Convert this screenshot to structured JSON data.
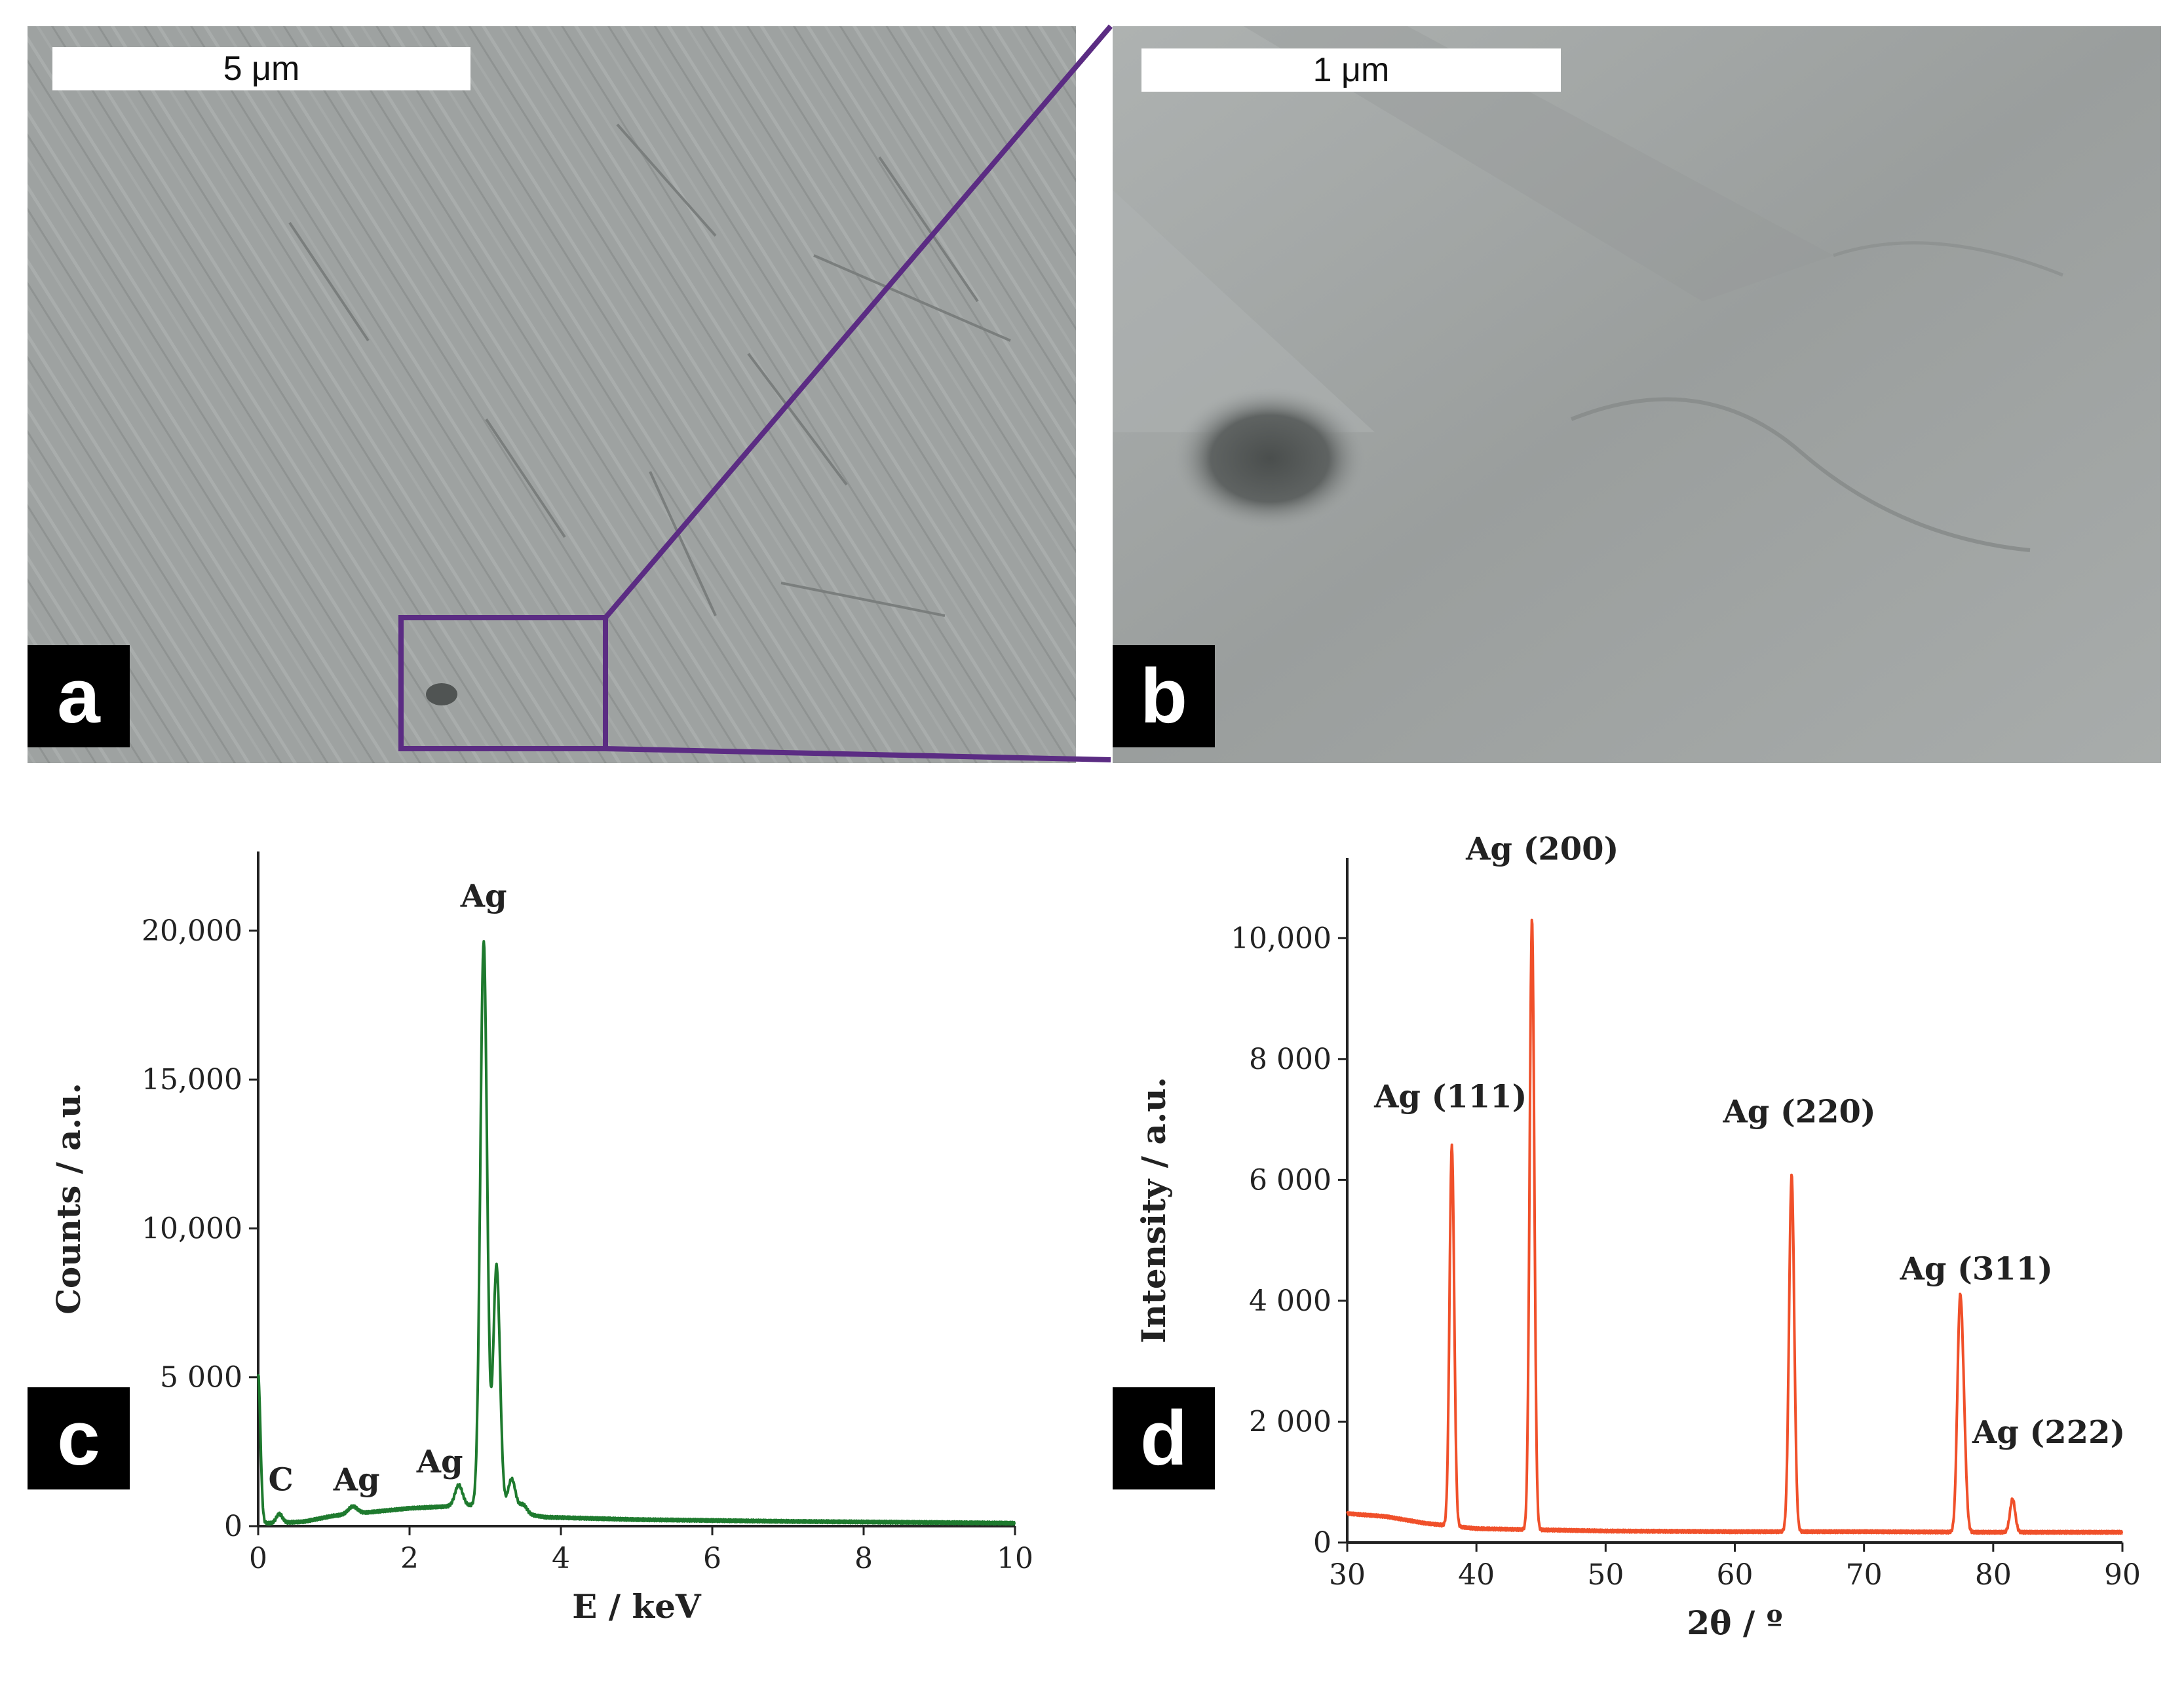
{
  "panels": {
    "a": {
      "letter": "a",
      "scalebar": "5 μm"
    },
    "b": {
      "letter": "b",
      "scalebar": "1 μm"
    },
    "c": {
      "letter": "c"
    },
    "d": {
      "letter": "d"
    }
  },
  "colors": {
    "zoom_box": "#5b2c83",
    "eds_line": "#1e7a2e",
    "xrd_line": "#f0502a",
    "sem_background": "#9ca0a0"
  },
  "chart_data": [
    {
      "type": "line",
      "panel": "c",
      "xlabel": "E / keV",
      "ylabel": "Counts / a.u.",
      "xlim": [
        0,
        10
      ],
      "ylim": [
        0,
        22000
      ],
      "xticks": [
        0,
        2,
        4,
        6,
        8,
        10
      ],
      "xtick_labels": [
        "0",
        "2",
        "4",
        "6",
        "8",
        "10"
      ],
      "yticks": [
        0,
        5000,
        10000,
        15000,
        20000
      ],
      "ytick_labels": [
        "0",
        "5 000",
        "10,000",
        "15,000",
        "20,000"
      ],
      "grid": false,
      "annotations": [
        {
          "text": "C",
          "x": 0.3,
          "y": 1200
        },
        {
          "text": "Ag",
          "x": 1.3,
          "y": 1200
        },
        {
          "text": "Ag",
          "x": 2.4,
          "y": 1800
        },
        {
          "text": "Ag",
          "x": 2.98,
          "y": 20800
        }
      ],
      "peaks": [
        {
          "x": 0.0,
          "y": 5000,
          "w": 0.03
        },
        {
          "x": 0.28,
          "y": 300,
          "w": 0.04
        },
        {
          "x": 1.25,
          "y": 250,
          "w": 0.06
        },
        {
          "x": 2.65,
          "y": 700,
          "w": 0.05
        },
        {
          "x": 2.98,
          "y": 19000,
          "w": 0.045
        },
        {
          "x": 3.15,
          "y": 8200,
          "w": 0.045
        },
        {
          "x": 3.35,
          "y": 1100,
          "w": 0.05
        },
        {
          "x": 3.5,
          "y": 300,
          "w": 0.05
        }
      ],
      "baseline": [
        [
          0.2,
          100
        ],
        [
          0.6,
          150
        ],
        [
          1.0,
          350
        ],
        [
          2.0,
          600
        ],
        [
          2.8,
          700
        ],
        [
          3.8,
          300
        ],
        [
          5.0,
          220
        ],
        [
          7.0,
          160
        ],
        [
          10.0,
          100
        ]
      ]
    },
    {
      "type": "line",
      "panel": "d",
      "xlabel": "2θ / º",
      "ylabel": "Intensity / a.u.",
      "xlim": [
        30,
        90
      ],
      "ylim": [
        0,
        11000
      ],
      "xticks": [
        30,
        40,
        50,
        60,
        70,
        80,
        90
      ],
      "xtick_labels": [
        "30",
        "40",
        "50",
        "60",
        "70",
        "80",
        "90"
      ],
      "yticks": [
        0,
        2000,
        4000,
        6000,
        8000,
        10000
      ],
      "ytick_labels": [
        "0",
        "2 000",
        "4 000",
        "6 000",
        "8 000",
        "10,000"
      ],
      "grid": false,
      "annotations": [
        {
          "text": "Ag (111)",
          "x": 38.0,
          "y": 7200
        },
        {
          "text": "Ag (200)",
          "x": 45.1,
          "y": 11300
        },
        {
          "text": "Ag (220)",
          "x": 65.0,
          "y": 6950
        },
        {
          "text": "Ag (311)",
          "x": 78.7,
          "y": 4350
        },
        {
          "text": "Ag (222)",
          "x": 84.3,
          "y": 1650
        }
      ],
      "peaks": [
        {
          "x": 38.1,
          "y": 6300,
          "w": 0.18
        },
        {
          "x": 44.3,
          "y": 10100,
          "w": 0.18
        },
        {
          "x": 64.4,
          "y": 5900,
          "w": 0.2
        },
        {
          "x": 77.4,
          "y": 3300,
          "w": 0.2
        },
        {
          "x": 77.7,
          "y": 1600,
          "w": 0.2
        },
        {
          "x": 81.5,
          "y": 550,
          "w": 0.2
        }
      ],
      "baseline": [
        [
          30,
          480
        ],
        [
          33,
          430
        ],
        [
          36,
          320
        ],
        [
          40,
          230
        ],
        [
          50,
          190
        ],
        [
          60,
          180
        ],
        [
          70,
          180
        ],
        [
          80,
          170
        ],
        [
          90,
          170
        ]
      ]
    }
  ]
}
